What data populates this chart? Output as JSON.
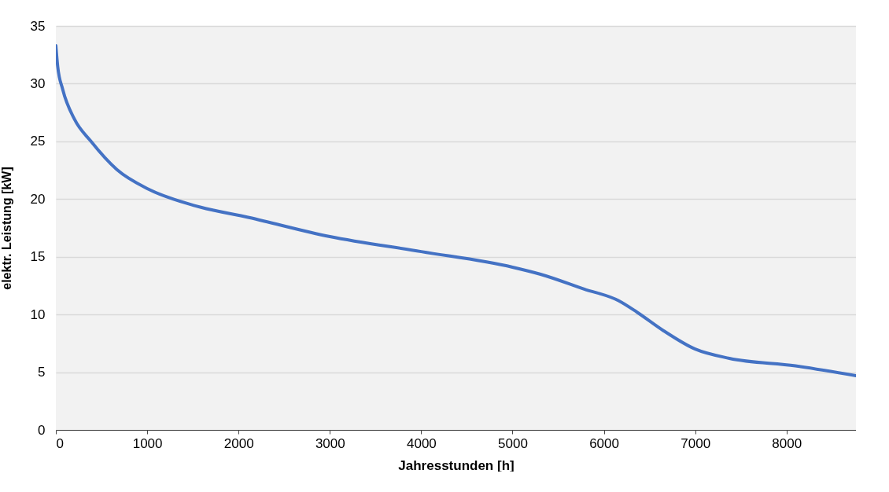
{
  "chart_data": {
    "type": "line",
    "xlabel": "Jahresstunden [h]",
    "ylabel": "elektr. Leistung [kW]",
    "x": [
      0,
      20,
      75,
      205,
      379,
      668,
      1015,
      1535,
      2114,
      3000,
      4000,
      5000,
      5300,
      5785,
      6160,
      6363,
      6652,
      7000,
      7375,
      8098,
      8760
    ],
    "series": [
      {
        "color": "#4472c4",
        "values": [
          33.3,
          31.5,
          29.5,
          26.9,
          25.05,
          22.55,
          20.85,
          19.4,
          18.4,
          16.75,
          15.45,
          14.1,
          13.5,
          12.2,
          11.2,
          10.2,
          8.6,
          7.0,
          6.2,
          5.55,
          4.7
        ]
      }
    ],
    "xlim": [
      0,
      8760
    ],
    "ylim": [
      0,
      35
    ],
    "xticks": [
      0,
      1000,
      2000,
      3000,
      4000,
      5000,
      6000,
      7000,
      8000
    ],
    "yticks": [
      0,
      5,
      10,
      15,
      20,
      25,
      30,
      35
    ],
    "grid": "y",
    "marker": "none",
    "line_style": "solid"
  }
}
